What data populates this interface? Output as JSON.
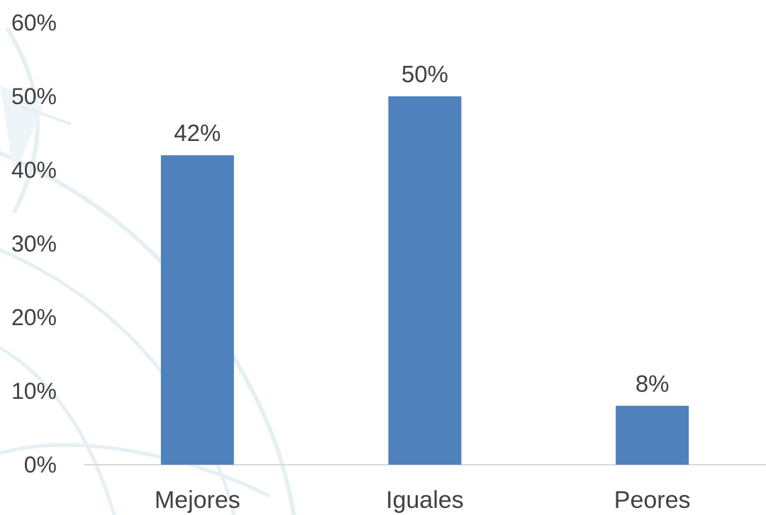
{
  "chart_data": {
    "type": "bar",
    "categories": [
      "Mejores",
      "Iguales",
      "Peores"
    ],
    "values": [
      42,
      50,
      8
    ],
    "data_labels": [
      "42%",
      "50%",
      "8%"
    ],
    "ylim": [
      0,
      60
    ],
    "yticks": [
      0,
      10,
      20,
      30,
      40,
      50,
      60
    ],
    "ytick_labels": [
      "0%",
      "10%",
      "20%",
      "30%",
      "40%",
      "50%",
      "60%"
    ],
    "title": "",
    "xlabel": "",
    "ylabel": "",
    "grid": false,
    "legend": "none",
    "colors": {
      "bar": "#4f81bd",
      "axis": "#d9d9d9",
      "text": "#404040",
      "watermark": "#e6f0f4"
    }
  }
}
